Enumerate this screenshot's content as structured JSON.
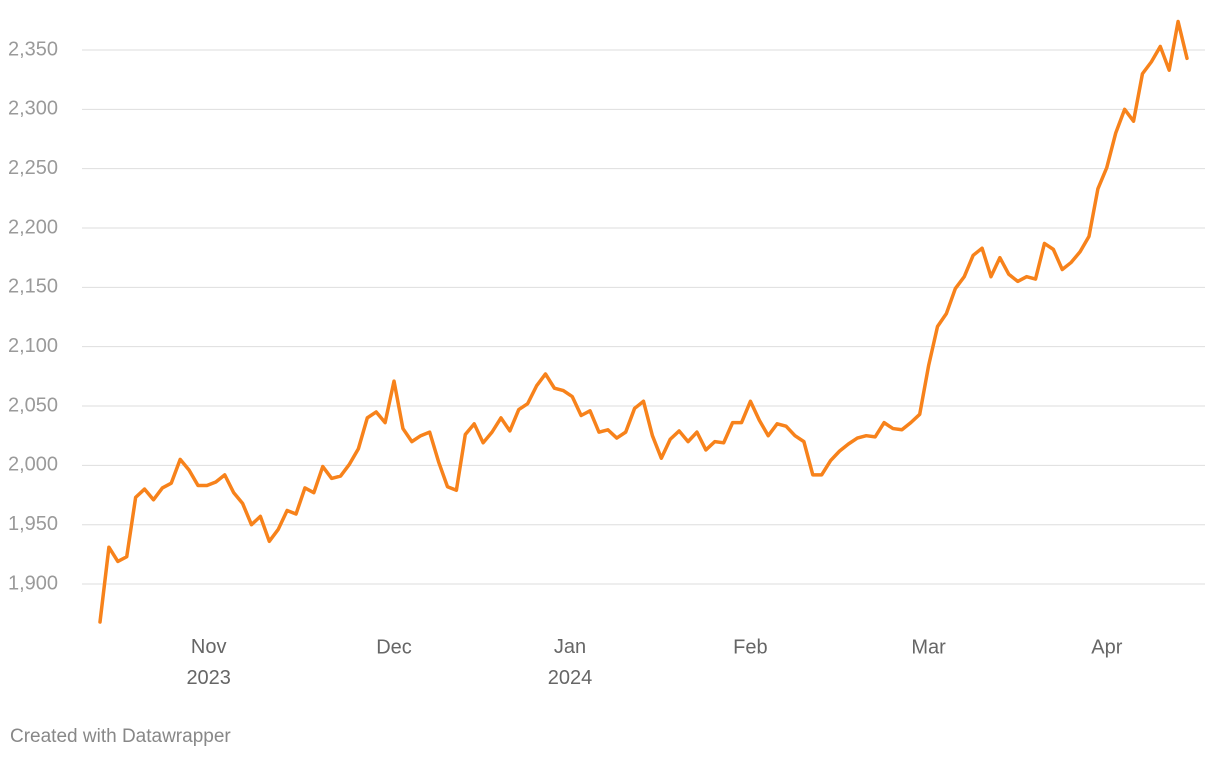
{
  "chart_data": {
    "type": "line",
    "categories": [
      null,
      null,
      null,
      null,
      null,
      null,
      null,
      null,
      null,
      null,
      null,
      null,
      null,
      null,
      null,
      null,
      null,
      null,
      null,
      null,
      null,
      null,
      null,
      null,
      null,
      null,
      null,
      null,
      null,
      null,
      null,
      null,
      null,
      null,
      null,
      null,
      null,
      null,
      null,
      null,
      null,
      null,
      null,
      null,
      null,
      null,
      null,
      null,
      null,
      null,
      null,
      null,
      null,
      null,
      null,
      null,
      null,
      null,
      null,
      null,
      null,
      null,
      null,
      null,
      null,
      null,
      null,
      null,
      null,
      null,
      null,
      null,
      null,
      null,
      null,
      null,
      null,
      null,
      null,
      null,
      null,
      null,
      null,
      null,
      null,
      null,
      null,
      null,
      null,
      null,
      null,
      null,
      null,
      null,
      null,
      null,
      null,
      null,
      null,
      null,
      null,
      null,
      null,
      null,
      null,
      null,
      null,
      null,
      null,
      null,
      null,
      null,
      null,
      null,
      null,
      null,
      null,
      null,
      null,
      null,
      null,
      null,
      null
    ],
    "series": [
      {
        "color": "#f7821b",
        "values": [
          1868,
          1931,
          1919,
          1923,
          1973,
          1980,
          1971,
          1981,
          1985,
          2005,
          1996,
          1983,
          1983,
          1986,
          1992,
          1977,
          1968,
          1950,
          1957,
          1936,
          1946,
          1962,
          1959,
          1981,
          1977,
          1999,
          1989,
          1991,
          2001,
          2014,
          2040,
          2045,
          2036,
          2071,
          2031,
          2020,
          2025,
          2028,
          2003,
          1982,
          1979,
          2026,
          2035,
          2019,
          2028,
          2040,
          2029,
          2047,
          2052,
          2067,
          2077,
          2065,
          2063,
          2058,
          2042,
          2046,
          2028,
          2030,
          2023,
          2028,
          2048,
          2054,
          2025,
          2006,
          2022,
          2029,
          2020,
          2028,
          2013,
          2020,
          2019,
          2036,
          2036,
          2054,
          2038,
          2025,
          2035,
          2033,
          2025,
          2020,
          1992,
          1992,
          2004,
          2012,
          2018,
          2023,
          2025,
          2024,
          2036,
          2031,
          2030,
          2036,
          2043,
          2084,
          2117,
          2128,
          2149,
          2159,
          2177,
          2183,
          2159,
          2175,
          2161,
          2155,
          2159,
          2157,
          2187,
          2182,
          2165,
          2171,
          2180,
          2193,
          2233,
          2251,
          2280,
          2300,
          2290,
          2330,
          2340,
          2353,
          2333,
          2374,
          2343
        ]
      }
    ],
    "xticks": [
      {
        "value": 12.2,
        "label": "Nov 2023"
      },
      {
        "value": 33,
        "label": "Dec"
      },
      {
        "value": 52.75,
        "label": "Jan 2024"
      },
      {
        "value": 73,
        "label": "Feb"
      },
      {
        "value": 93,
        "label": "Mar"
      },
      {
        "value": 113,
        "label": "Apr"
      }
    ],
    "ylim": [
      1860,
      2380
    ],
    "yticks": [
      {
        "value": 1900,
        "label": "1,900"
      },
      {
        "value": 1950,
        "label": "1,950"
      },
      {
        "value": 2000,
        "label": "2,000"
      },
      {
        "value": 2050,
        "label": "2,050"
      },
      {
        "value": 2100,
        "label": "2,100"
      },
      {
        "value": 2150,
        "label": "2,150"
      },
      {
        "value": 2200,
        "label": "2,200"
      },
      {
        "value": 2250,
        "label": "2,250"
      },
      {
        "value": 2300,
        "label": "2,300"
      },
      {
        "value": 2350,
        "label": "2,350"
      }
    ],
    "grid": true,
    "credit": "Created with Datawrapper"
  }
}
